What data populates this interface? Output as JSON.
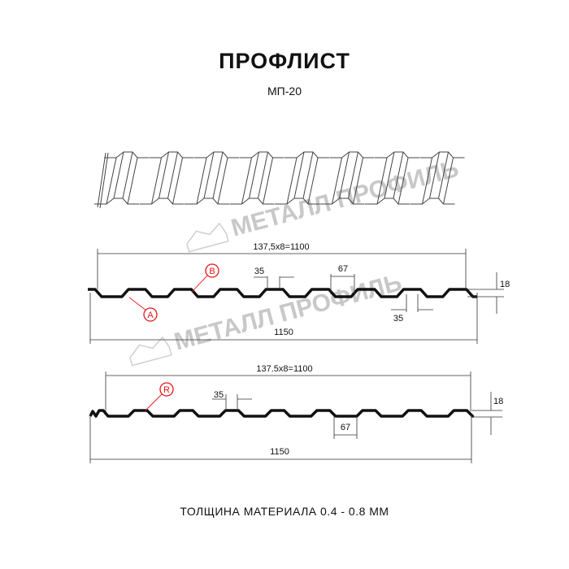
{
  "header": {
    "title": "ПРОФЛИСТ",
    "subtitle": "МП-20"
  },
  "watermark": {
    "text": "МЕТАЛЛ ПРОФИЛЬ"
  },
  "profile_1": {
    "pitch_label": "137,5x8=1100",
    "width_label": "1150",
    "rib_top_label": "35",
    "rib_top_label_2": "35",
    "valley_label": "67",
    "height_label": "18",
    "marker_a": "A",
    "marker_b": "B"
  },
  "profile_2": {
    "pitch_label": "137.5x8=1100",
    "width_label": "1150",
    "rib_top_label": "35",
    "valley_label": "67",
    "height_label": "18",
    "marker_r": "R"
  },
  "footer": {
    "thickness": "ТОЛЩИНА МАТЕРИАЛА 0.4 - 0.8 ММ"
  },
  "colors": {
    "line": "#111111",
    "marker": "#e5161b",
    "watermark": "#c8c8c8"
  }
}
